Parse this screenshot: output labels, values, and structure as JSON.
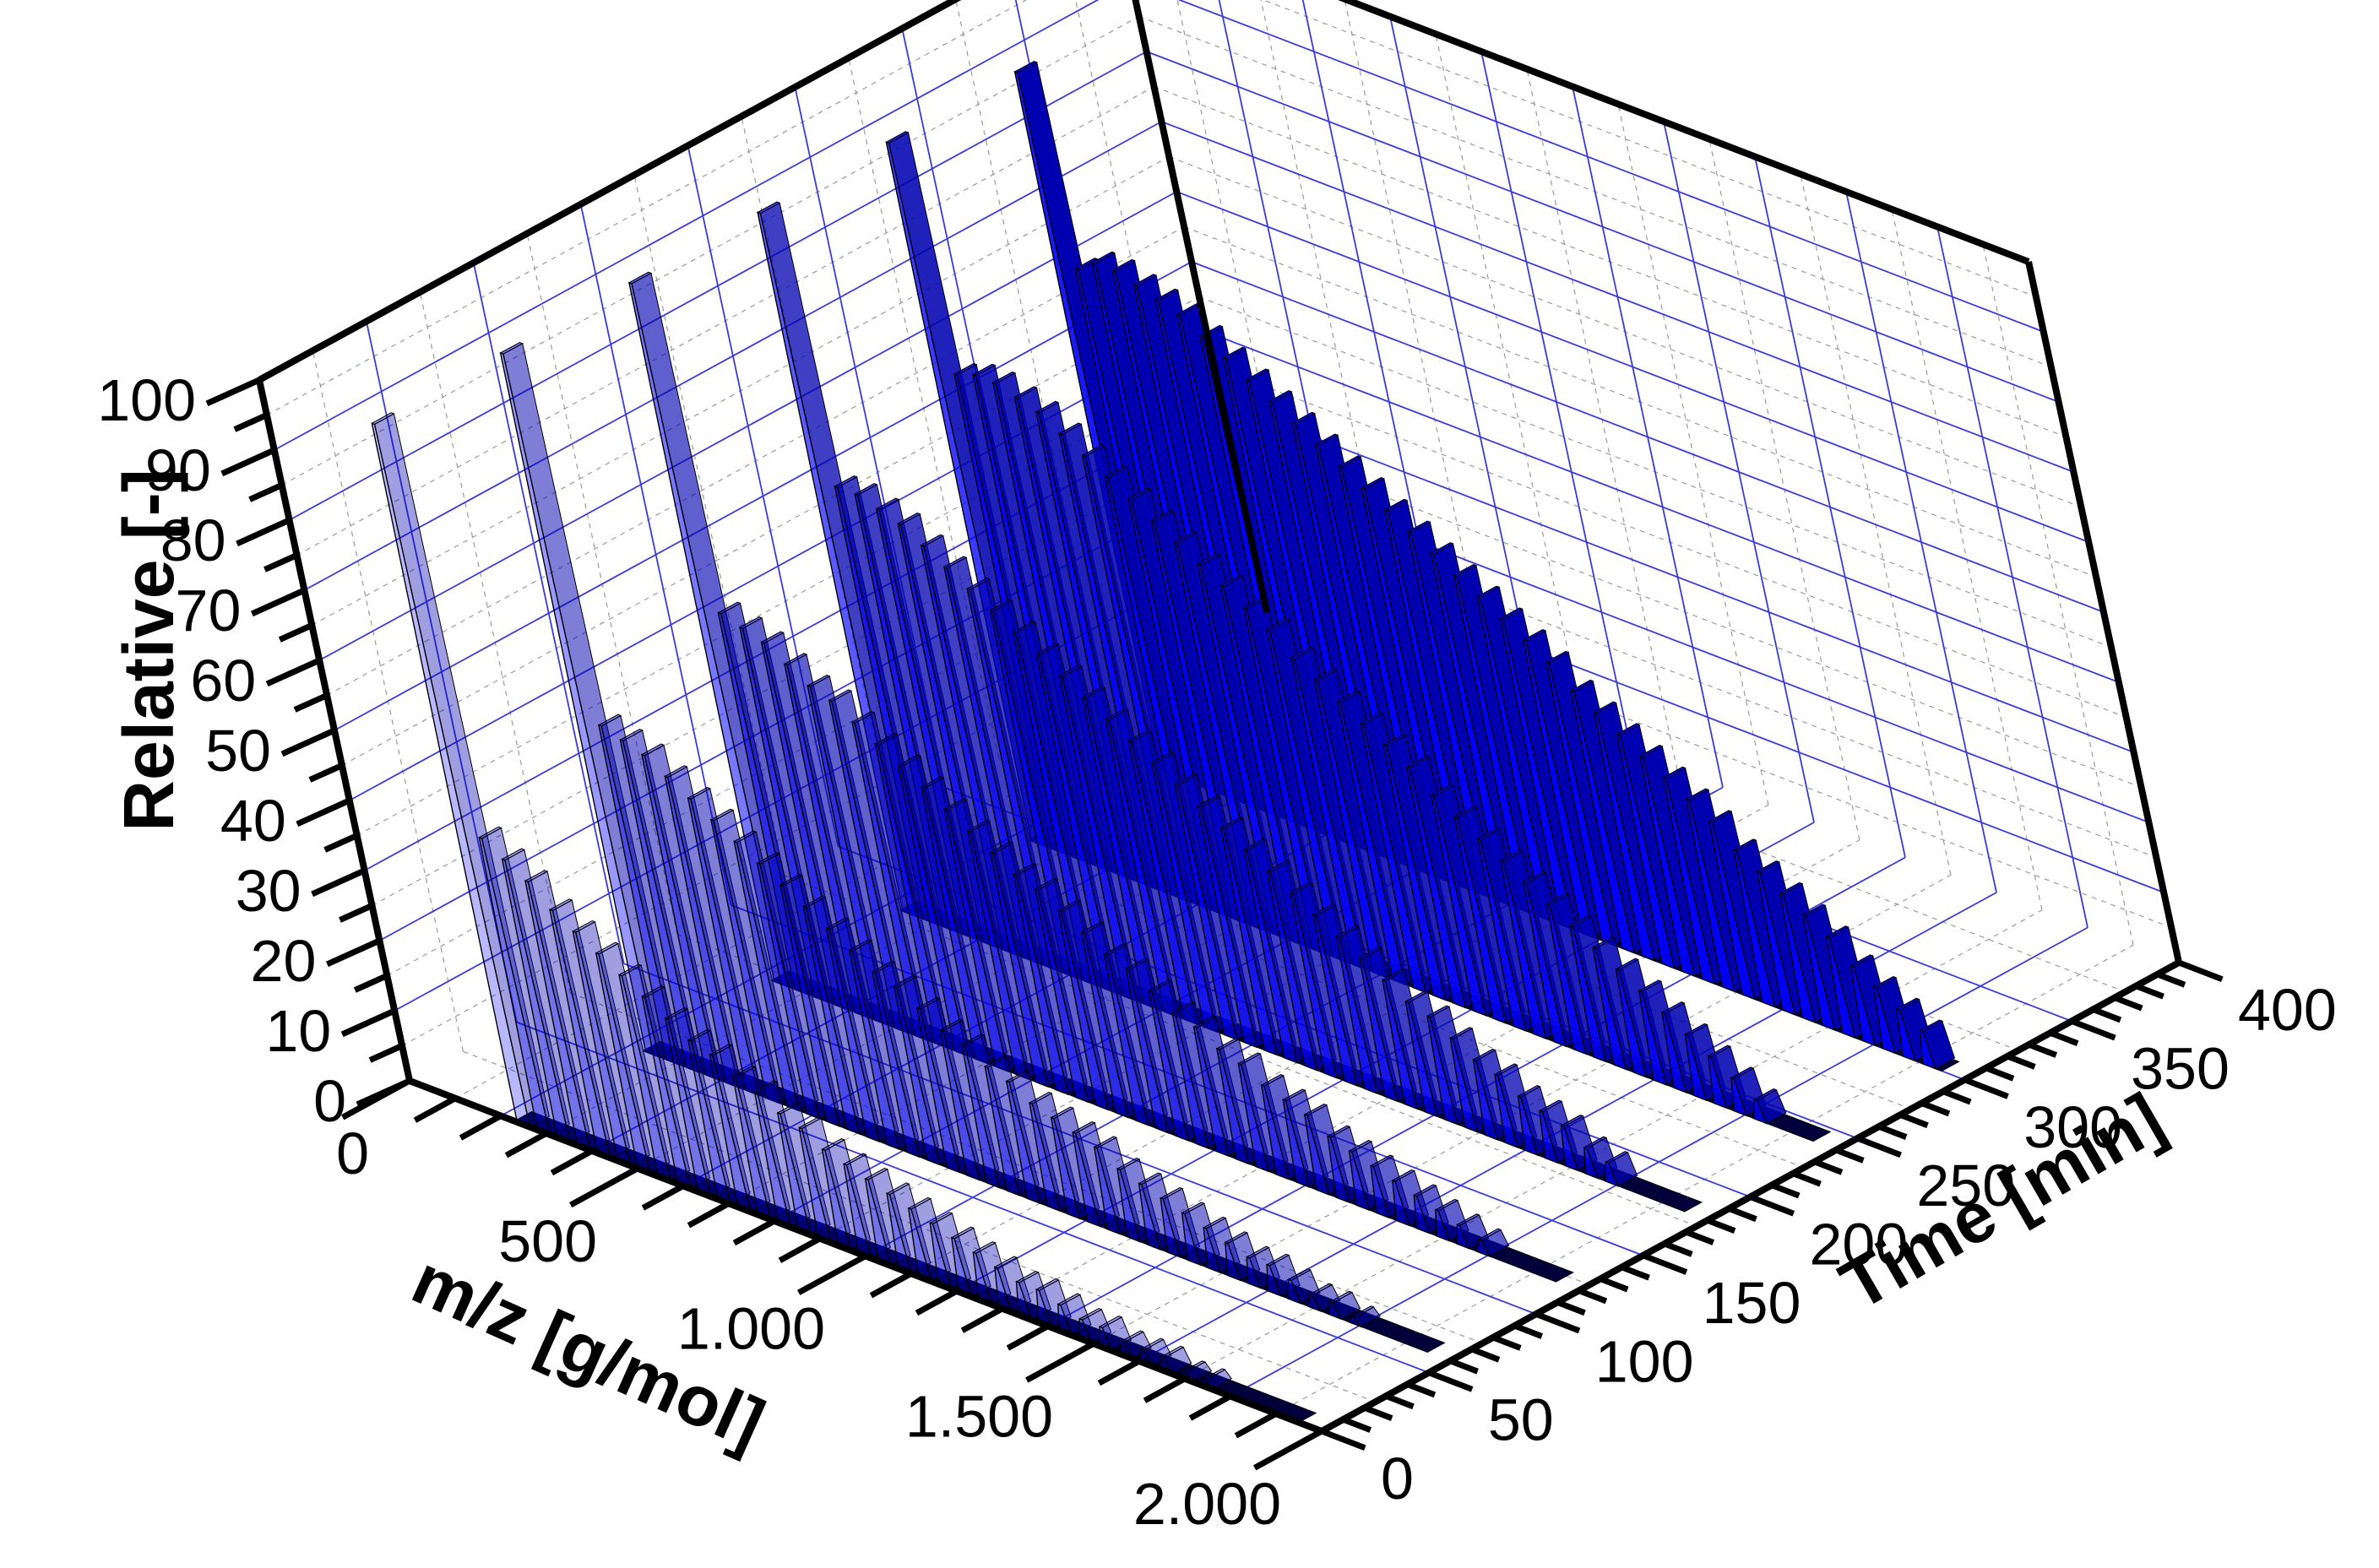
{
  "chart_data": {
    "type": "3d-waterfall",
    "x_axis": {
      "label": "m/z [g/mol]",
      "range": [
        0,
        2000
      ],
      "ticks": [
        0,
        500,
        1000,
        1500,
        2000
      ],
      "tick_labels": [
        "0",
        "500",
        "1.000",
        "1.500",
        "2.000"
      ]
    },
    "y_axis": {
      "label": "Time [min]",
      "range": [
        0,
        400
      ],
      "ticks": [
        0,
        50,
        100,
        150,
        200,
        250,
        300,
        350,
        400
      ],
      "tick_labels": [
        "0",
        "50",
        "100",
        "150",
        "200",
        "250",
        "300",
        "350",
        "400"
      ]
    },
    "z_axis": {
      "label": "Relative [-]",
      "range": [
        0,
        100
      ],
      "ticks": [
        0,
        10,
        20,
        30,
        40,
        50,
        60,
        70,
        80,
        90,
        100
      ],
      "tick_labels": [
        "0",
        "10",
        "20",
        "30",
        "40",
        "50",
        "60",
        "70",
        "80",
        "90",
        "100"
      ]
    },
    "grid": true,
    "colors": {
      "series_base": "#0000ff",
      "grid_major": "#3b3bd6",
      "grid_minor": "#9a9a9a",
      "frame": "#000000",
      "outline": "#000000"
    },
    "peak_spacing_mz": 44,
    "peak_halfwidth_mz": 14,
    "series": [
      {
        "time": 0,
        "peaks": [
          {
            "mz": 250,
            "rel": 100
          },
          {
            "mz": 294,
            "rel": 42
          },
          {
            "mz": 338,
            "rel": 40
          },
          {
            "mz": 382,
            "rel": 38
          },
          {
            "mz": 426,
            "rel": 35
          },
          {
            "mz": 470,
            "rel": 33
          },
          {
            "mz": 514,
            "rel": 31
          },
          {
            "mz": 558,
            "rel": 29
          },
          {
            "mz": 602,
            "rel": 27
          },
          {
            "mz": 646,
            "rel": 25
          },
          {
            "mz": 690,
            "rel": 23
          },
          {
            "mz": 734,
            "rel": 22
          },
          {
            "mz": 778,
            "rel": 20
          },
          {
            "mz": 822,
            "rel": 19
          },
          {
            "mz": 866,
            "rel": 17
          },
          {
            "mz": 910,
            "rel": 16
          },
          {
            "mz": 954,
            "rel": 14
          },
          {
            "mz": 998,
            "rel": 13
          },
          {
            "mz": 1042,
            "rel": 12
          },
          {
            "mz": 1086,
            "rel": 11
          },
          {
            "mz": 1130,
            "rel": 10
          },
          {
            "mz": 1174,
            "rel": 9
          },
          {
            "mz": 1218,
            "rel": 8
          },
          {
            "mz": 1262,
            "rel": 7
          },
          {
            "mz": 1306,
            "rel": 6
          },
          {
            "mz": 1350,
            "rel": 5
          },
          {
            "mz": 1394,
            "rel": 5
          },
          {
            "mz": 1438,
            "rel": 4
          },
          {
            "mz": 1482,
            "rel": 3
          },
          {
            "mz": 1526,
            "rel": 3
          },
          {
            "mz": 1570,
            "rel": 2
          },
          {
            "mz": 1614,
            "rel": 2
          },
          {
            "mz": 1658,
            "rel": 2
          },
          {
            "mz": 1702,
            "rel": 1
          },
          {
            "mz": 1746,
            "rel": 1
          }
        ]
      },
      {
        "time": 60,
        "peaks": [
          {
            "mz": 250,
            "rel": 100
          },
          {
            "mz": 294,
            "rel": 48
          },
          {
            "mz": 338,
            "rel": 47
          },
          {
            "mz": 382,
            "rel": 46
          },
          {
            "mz": 426,
            "rel": 44
          },
          {
            "mz": 470,
            "rel": 42
          },
          {
            "mz": 514,
            "rel": 40
          },
          {
            "mz": 558,
            "rel": 38
          },
          {
            "mz": 602,
            "rel": 36
          },
          {
            "mz": 646,
            "rel": 34
          },
          {
            "mz": 690,
            "rel": 32
          },
          {
            "mz": 734,
            "rel": 30
          },
          {
            "mz": 778,
            "rel": 28
          },
          {
            "mz": 822,
            "rel": 26
          },
          {
            "mz": 866,
            "rel": 25
          },
          {
            "mz": 910,
            "rel": 23
          },
          {
            "mz": 954,
            "rel": 21
          },
          {
            "mz": 998,
            "rel": 20
          },
          {
            "mz": 1042,
            "rel": 18
          },
          {
            "mz": 1086,
            "rel": 17
          },
          {
            "mz": 1130,
            "rel": 15
          },
          {
            "mz": 1174,
            "rel": 14
          },
          {
            "mz": 1218,
            "rel": 13
          },
          {
            "mz": 1262,
            "rel": 12
          },
          {
            "mz": 1306,
            "rel": 10
          },
          {
            "mz": 1350,
            "rel": 9
          },
          {
            "mz": 1394,
            "rel": 8
          },
          {
            "mz": 1438,
            "rel": 7
          },
          {
            "mz": 1482,
            "rel": 6
          },
          {
            "mz": 1526,
            "rel": 5
          },
          {
            "mz": 1570,
            "rel": 4
          },
          {
            "mz": 1614,
            "rel": 4
          },
          {
            "mz": 1658,
            "rel": 3
          },
          {
            "mz": 1702,
            "rel": 2
          },
          {
            "mz": 1746,
            "rel": 2
          },
          {
            "mz": 1790,
            "rel": 1
          }
        ]
      },
      {
        "time": 120,
        "peaks": [
          {
            "mz": 250,
            "rel": 100
          },
          {
            "mz": 294,
            "rel": 54
          },
          {
            "mz": 338,
            "rel": 53
          },
          {
            "mz": 382,
            "rel": 52
          },
          {
            "mz": 426,
            "rel": 50
          },
          {
            "mz": 470,
            "rel": 48
          },
          {
            "mz": 514,
            "rel": 47
          },
          {
            "mz": 558,
            "rel": 45
          },
          {
            "mz": 602,
            "rel": 43
          },
          {
            "mz": 646,
            "rel": 41
          },
          {
            "mz": 690,
            "rel": 39
          },
          {
            "mz": 734,
            "rel": 37
          },
          {
            "mz": 778,
            "rel": 35
          },
          {
            "mz": 822,
            "rel": 33
          },
          {
            "mz": 866,
            "rel": 31
          },
          {
            "mz": 910,
            "rel": 30
          },
          {
            "mz": 954,
            "rel": 28
          },
          {
            "mz": 998,
            "rel": 26
          },
          {
            "mz": 1042,
            "rel": 24
          },
          {
            "mz": 1086,
            "rel": 23
          },
          {
            "mz": 1130,
            "rel": 21
          },
          {
            "mz": 1174,
            "rel": 19
          },
          {
            "mz": 1218,
            "rel": 18
          },
          {
            "mz": 1262,
            "rel": 16
          },
          {
            "mz": 1306,
            "rel": 15
          },
          {
            "mz": 1350,
            "rel": 13
          },
          {
            "mz": 1394,
            "rel": 12
          },
          {
            "mz": 1438,
            "rel": 11
          },
          {
            "mz": 1482,
            "rel": 9
          },
          {
            "mz": 1526,
            "rel": 8
          },
          {
            "mz": 1570,
            "rel": 7
          },
          {
            "mz": 1614,
            "rel": 6
          },
          {
            "mz": 1658,
            "rel": 5
          },
          {
            "mz": 1702,
            "rel": 4
          },
          {
            "mz": 1746,
            "rel": 3
          },
          {
            "mz": 1790,
            "rel": 2
          }
        ]
      },
      {
        "time": 180,
        "peaks": [
          {
            "mz": 250,
            "rel": 100
          },
          {
            "mz": 294,
            "rel": 62
          },
          {
            "mz": 338,
            "rel": 62
          },
          {
            "mz": 382,
            "rel": 61
          },
          {
            "mz": 426,
            "rel": 60
          },
          {
            "mz": 470,
            "rel": 58
          },
          {
            "mz": 514,
            "rel": 56
          },
          {
            "mz": 558,
            "rel": 54
          },
          {
            "mz": 602,
            "rel": 52
          },
          {
            "mz": 646,
            "rel": 50
          },
          {
            "mz": 690,
            "rel": 48
          },
          {
            "mz": 734,
            "rel": 46
          },
          {
            "mz": 778,
            "rel": 44
          },
          {
            "mz": 822,
            "rel": 42
          },
          {
            "mz": 866,
            "rel": 40
          },
          {
            "mz": 910,
            "rel": 38
          },
          {
            "mz": 954,
            "rel": 36
          },
          {
            "mz": 998,
            "rel": 34
          },
          {
            "mz": 1042,
            "rel": 32
          },
          {
            "mz": 1086,
            "rel": 30
          },
          {
            "mz": 1130,
            "rel": 28
          },
          {
            "mz": 1174,
            "rel": 26
          },
          {
            "mz": 1218,
            "rel": 24
          },
          {
            "mz": 1262,
            "rel": 22
          },
          {
            "mz": 1306,
            "rel": 20
          },
          {
            "mz": 1350,
            "rel": 18
          },
          {
            "mz": 1394,
            "rel": 16
          },
          {
            "mz": 1438,
            "rel": 15
          },
          {
            "mz": 1482,
            "rel": 13
          },
          {
            "mz": 1526,
            "rel": 11
          },
          {
            "mz": 1570,
            "rel": 10
          },
          {
            "mz": 1614,
            "rel": 8
          },
          {
            "mz": 1658,
            "rel": 7
          },
          {
            "mz": 1702,
            "rel": 6
          },
          {
            "mz": 1746,
            "rel": 4
          },
          {
            "mz": 1790,
            "rel": 3
          }
        ]
      },
      {
        "time": 240,
        "peaks": [
          {
            "mz": 250,
            "rel": 100
          },
          {
            "mz": 294,
            "rel": 68
          },
          {
            "mz": 338,
            "rel": 69
          },
          {
            "mz": 382,
            "rel": 69
          },
          {
            "mz": 426,
            "rel": 68
          },
          {
            "mz": 470,
            "rel": 67
          },
          {
            "mz": 514,
            "rel": 65
          },
          {
            "mz": 558,
            "rel": 63
          },
          {
            "mz": 602,
            "rel": 61
          },
          {
            "mz": 646,
            "rel": 59
          },
          {
            "mz": 690,
            "rel": 57
          },
          {
            "mz": 734,
            "rel": 55
          },
          {
            "mz": 778,
            "rel": 53
          },
          {
            "mz": 822,
            "rel": 51
          },
          {
            "mz": 866,
            "rel": 49
          },
          {
            "mz": 910,
            "rel": 47
          },
          {
            "mz": 954,
            "rel": 44
          },
          {
            "mz": 998,
            "rel": 42
          },
          {
            "mz": 1042,
            "rel": 40
          },
          {
            "mz": 1086,
            "rel": 38
          },
          {
            "mz": 1130,
            "rel": 36
          },
          {
            "mz": 1174,
            "rel": 34
          },
          {
            "mz": 1218,
            "rel": 31
          },
          {
            "mz": 1262,
            "rel": 29
          },
          {
            "mz": 1306,
            "rel": 27
          },
          {
            "mz": 1350,
            "rel": 25
          },
          {
            "mz": 1394,
            "rel": 23
          },
          {
            "mz": 1438,
            "rel": 21
          },
          {
            "mz": 1482,
            "rel": 19
          },
          {
            "mz": 1526,
            "rel": 17
          },
          {
            "mz": 1570,
            "rel": 15
          },
          {
            "mz": 1614,
            "rel": 13
          },
          {
            "mz": 1658,
            "rel": 11
          },
          {
            "mz": 1702,
            "rel": 9
          },
          {
            "mz": 1746,
            "rel": 7
          },
          {
            "mz": 1790,
            "rel": 5
          },
          {
            "mz": 1834,
            "rel": 3
          }
        ]
      },
      {
        "time": 300,
        "peaks": [
          {
            "mz": 250,
            "rel": 100
          },
          {
            "mz": 294,
            "rel": 73
          },
          {
            "mz": 338,
            "rel": 75
          },
          {
            "mz": 382,
            "rel": 75
          },
          {
            "mz": 426,
            "rel": 74
          },
          {
            "mz": 470,
            "rel": 73
          },
          {
            "mz": 514,
            "rel": 72
          },
          {
            "mz": 558,
            "rel": 70
          },
          {
            "mz": 602,
            "rel": 68
          },
          {
            "mz": 646,
            "rel": 66
          },
          {
            "mz": 690,
            "rel": 64
          },
          {
            "mz": 734,
            "rel": 62
          },
          {
            "mz": 778,
            "rel": 60
          },
          {
            "mz": 822,
            "rel": 58
          },
          {
            "mz": 866,
            "rel": 56
          },
          {
            "mz": 910,
            "rel": 54
          },
          {
            "mz": 954,
            "rel": 52
          },
          {
            "mz": 998,
            "rel": 50
          },
          {
            "mz": 1042,
            "rel": 48
          },
          {
            "mz": 1086,
            "rel": 46
          },
          {
            "mz": 1130,
            "rel": 44
          },
          {
            "mz": 1174,
            "rel": 42
          },
          {
            "mz": 1218,
            "rel": 40
          },
          {
            "mz": 1262,
            "rel": 37
          },
          {
            "mz": 1306,
            "rel": 35
          },
          {
            "mz": 1350,
            "rel": 33
          },
          {
            "mz": 1394,
            "rel": 31
          },
          {
            "mz": 1438,
            "rel": 29
          },
          {
            "mz": 1482,
            "rel": 27
          },
          {
            "mz": 1526,
            "rel": 25
          },
          {
            "mz": 1570,
            "rel": 22
          },
          {
            "mz": 1614,
            "rel": 20
          },
          {
            "mz": 1658,
            "rel": 18
          },
          {
            "mz": 1702,
            "rel": 16
          },
          {
            "mz": 1746,
            "rel": 14
          },
          {
            "mz": 1790,
            "rel": 11
          },
          {
            "mz": 1834,
            "rel": 9
          },
          {
            "mz": 1878,
            "rel": 7
          },
          {
            "mz": 1922,
            "rel": 5
          }
        ]
      }
    ]
  }
}
